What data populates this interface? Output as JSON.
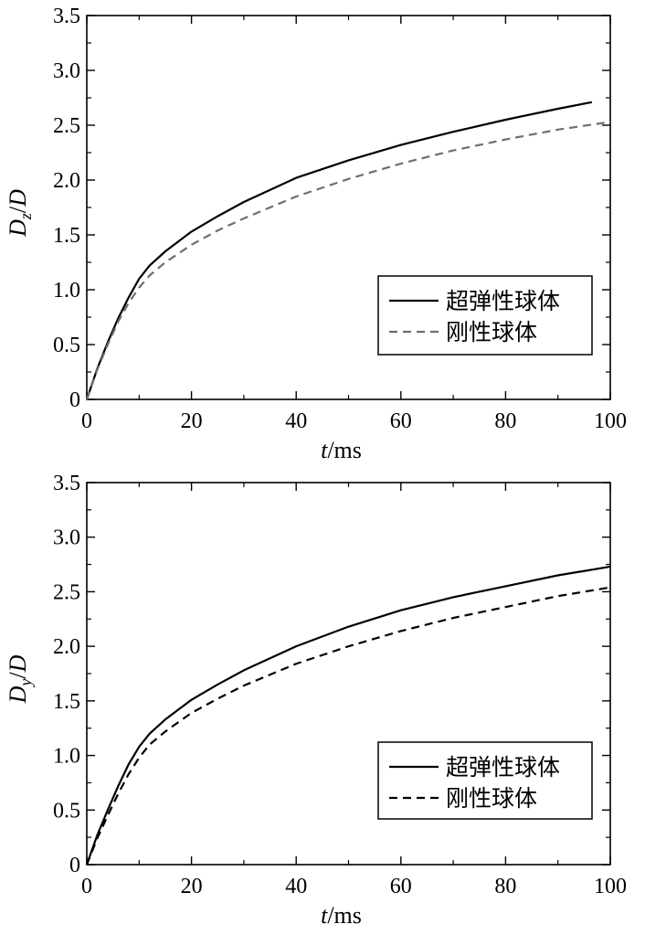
{
  "chart_data": [
    {
      "type": "line",
      "ylabel_main": "D",
      "ylabel_sub": "z",
      "ylabel_tail": "/D",
      "xlabel_var": "t",
      "xlabel_unit": "/ms",
      "xlim": [
        0,
        100
      ],
      "ylim": [
        0,
        3.5
      ],
      "xticks": [
        "0",
        "20",
        "40",
        "60",
        "80",
        "100"
      ],
      "yticks": [
        "0",
        "0.5",
        "1.0",
        "1.5",
        "2.0",
        "2.5",
        "3.0",
        "3.5"
      ],
      "legend_position": "lower-right",
      "series": [
        {
          "name": "超弹性球体",
          "style": "solid",
          "color": "#000000",
          "x": [
            0,
            2,
            4,
            6,
            8,
            10,
            12,
            15,
            20,
            25,
            30,
            40,
            50,
            60,
            70,
            80,
            90,
            96.5
          ],
          "y": [
            0,
            0.28,
            0.52,
            0.74,
            0.93,
            1.1,
            1.22,
            1.35,
            1.53,
            1.67,
            1.8,
            2.02,
            2.18,
            2.32,
            2.44,
            2.55,
            2.65,
            2.71
          ]
        },
        {
          "name": "刚性球体",
          "style": "dashed",
          "color": "#6e6e6e",
          "x": [
            0,
            2,
            4,
            6,
            8,
            10,
            12,
            15,
            20,
            25,
            30,
            40,
            50,
            60,
            70,
            80,
            90,
            100
          ],
          "y": [
            0,
            0.27,
            0.5,
            0.71,
            0.88,
            1.02,
            1.13,
            1.25,
            1.41,
            1.54,
            1.65,
            1.85,
            2.01,
            2.15,
            2.27,
            2.37,
            2.46,
            2.53
          ]
        }
      ]
    },
    {
      "type": "line",
      "ylabel_main": "D",
      "ylabel_sub": "y",
      "ylabel_tail": "/D",
      "xlabel_var": "t",
      "xlabel_unit": "/ms",
      "xlim": [
        0,
        100
      ],
      "ylim": [
        0,
        3.5
      ],
      "xticks": [
        "0",
        "20",
        "40",
        "60",
        "80",
        "100"
      ],
      "yticks": [
        "0",
        "0.5",
        "1.0",
        "1.5",
        "2.0",
        "2.5",
        "3.0",
        "3.5"
      ],
      "legend_position": "lower-right",
      "series": [
        {
          "name": "超弹性球体",
          "style": "solid",
          "color": "#000000",
          "x": [
            0,
            2,
            4,
            6,
            8,
            10,
            12,
            15,
            20,
            25,
            30,
            40,
            50,
            60,
            70,
            80,
            90,
            100
          ],
          "y": [
            0,
            0.27,
            0.5,
            0.72,
            0.92,
            1.08,
            1.2,
            1.33,
            1.51,
            1.65,
            1.78,
            2.0,
            2.18,
            2.33,
            2.45,
            2.55,
            2.65,
            2.73
          ]
        },
        {
          "name": "刚性球体",
          "style": "dashed",
          "color": "#000000",
          "x": [
            0,
            2,
            4,
            6,
            8,
            10,
            12,
            15,
            20,
            25,
            30,
            40,
            50,
            60,
            70,
            80,
            90,
            100
          ],
          "y": [
            0,
            0.24,
            0.45,
            0.65,
            0.83,
            0.98,
            1.1,
            1.22,
            1.39,
            1.52,
            1.64,
            1.84,
            2.0,
            2.14,
            2.26,
            2.36,
            2.46,
            2.54
          ]
        }
      ]
    }
  ]
}
